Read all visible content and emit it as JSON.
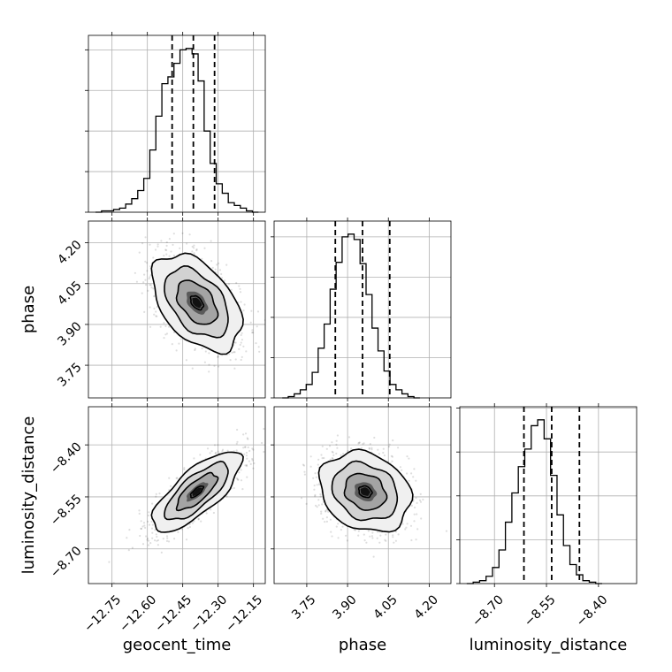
{
  "chart_data": {
    "type": "corner",
    "parameters": [
      "geocent_time",
      "phase",
      "luminosity_distance"
    ],
    "axis_labels": {
      "geocent_time": "geocent_time",
      "phase": "phase",
      "luminosity_distance": "luminosity_distance"
    },
    "ranges": {
      "geocent_time": [
        -12.85,
        -12.1
      ],
      "phase": [
        3.63,
        4.28
      ],
      "luminosity_distance": [
        -8.8,
        -8.29
      ]
    },
    "ticks": {
      "geocent_time": [
        {
          "value": -12.75,
          "label": "−12.75"
        },
        {
          "value": -12.6,
          "label": "−12.60"
        },
        {
          "value": -12.45,
          "label": "−12.45"
        },
        {
          "value": -12.3,
          "label": "−12.30"
        },
        {
          "value": -12.15,
          "label": "−12.15"
        }
      ],
      "phase": [
        {
          "value": 3.75,
          "label": "3.75"
        },
        {
          "value": 3.9,
          "label": "3.90"
        },
        {
          "value": 4.05,
          "label": "4.05"
        },
        {
          "value": 4.2,
          "label": "4.20"
        }
      ],
      "luminosity_distance": [
        {
          "value": -8.7,
          "label": "−8.70"
        },
        {
          "value": -8.55,
          "label": "−8.55"
        },
        {
          "value": -8.4,
          "label": "−8.40"
        }
      ]
    },
    "histograms": {
      "geocent_time": {
        "bin_start": -12.82,
        "bin_width": 0.0256,
        "counts": [
          0,
          1,
          1,
          2,
          3,
          6,
          10,
          16,
          25,
          46,
          71,
          95,
          100,
          110,
          120,
          121,
          117,
          97,
          60,
          36,
          21,
          14,
          7,
          5,
          3,
          1,
          0
        ],
        "quantiles": [
          -12.495,
          -12.405,
          -12.315
        ]
      },
      "phase": {
        "bin_start": 3.66,
        "bin_width": 0.022,
        "counts": [
          0,
          1,
          3,
          6,
          10,
          19,
          37,
          55,
          81,
          101,
          120,
          122,
          118,
          100,
          77,
          52,
          35,
          20,
          10,
          6,
          3,
          1,
          0
        ],
        "quantiles": [
          3.855,
          3.955,
          4.055
        ]
      },
      "luminosity_distance": {
        "bin_start": -8.78,
        "bin_width": 0.0186,
        "counts": [
          0,
          1,
          2,
          5,
          11,
          23,
          42,
          62,
          80,
          92,
          108,
          112,
          99,
          74,
          47,
          26,
          13,
          6,
          2,
          1,
          0
        ],
        "quantiles": [
          -8.615,
          -8.535,
          -8.455
        ]
      }
    },
    "pairs": [
      {
        "x": "geocent_time",
        "y": "phase",
        "center": [
          -12.39,
          3.98
        ],
        "sd": [
          0.09,
          0.085
        ],
        "correlation": -0.45
      },
      {
        "x": "geocent_time",
        "y": "luminosity_distance",
        "center": [
          -12.39,
          -8.535
        ],
        "sd": [
          0.09,
          0.055
        ],
        "correlation": 0.75
      },
      {
        "x": "phase",
        "y": "luminosity_distance",
        "center": [
          3.965,
          -8.535
        ],
        "sd": [
          0.08,
          0.055
        ],
        "correlation": -0.2
      }
    ],
    "grid": true,
    "colors": {
      "line": "#000000",
      "grid": "#b0b0b0",
      "points": "#000000",
      "quantile": "#000000"
    }
  }
}
